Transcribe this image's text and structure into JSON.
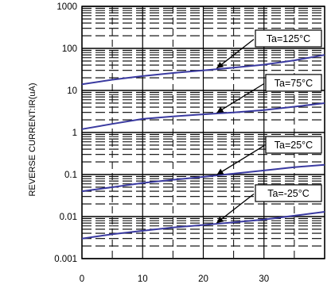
{
  "chart_data": {
    "type": "line",
    "title": "",
    "xlabel": "",
    "ylabel": "REVERSE CURRENT:IR(uA)",
    "y_scale": "log",
    "ylim": [
      0.001,
      1000
    ],
    "xlim": [
      0,
      40
    ],
    "grid": true,
    "x_tick_labels": [
      "0",
      "10",
      "20",
      "30"
    ],
    "y_tick_labels": [
      "1000",
      "100",
      "10",
      "1",
      "0.1",
      "0.01",
      "0.001"
    ],
    "series": [
      {
        "name": "Ta=125°C",
        "x": [
          0,
          5,
          10,
          15,
          20,
          25,
          30,
          35,
          40
        ],
        "values": [
          14,
          18,
          22,
          26,
          30,
          35,
          41,
          52,
          70
        ]
      },
      {
        "name": "Ta=75°C",
        "x": [
          0,
          5,
          10,
          15,
          20,
          25,
          30,
          35,
          40
        ],
        "values": [
          1.2,
          1.6,
          2.1,
          2.4,
          2.7,
          3.0,
          3.4,
          4.1,
          5.0
        ]
      },
      {
        "name": "Ta=25°C",
        "x": [
          0,
          5,
          10,
          15,
          20,
          25,
          30,
          35,
          40
        ],
        "values": [
          0.04,
          0.05,
          0.063,
          0.075,
          0.088,
          0.105,
          0.125,
          0.15,
          0.17
        ]
      },
      {
        "name": "Ta=-25°C",
        "x": [
          0,
          5,
          10,
          15,
          20,
          25,
          30,
          35,
          40
        ],
        "values": [
          0.003,
          0.0038,
          0.0046,
          0.0055,
          0.0063,
          0.0073,
          0.0085,
          0.0105,
          0.013
        ]
      }
    ],
    "annotations": [
      {
        "text": "Ta=125°C",
        "series": "Ta=125°C",
        "arrow_to_x": 22
      },
      {
        "text": "Ta=75°C",
        "series": "Ta=75°C",
        "arrow_to_x": 22
      },
      {
        "text": "Ta=25°C",
        "series": "Ta=25°C",
        "arrow_to_x": 22
      },
      {
        "text": "Ta=-25°C",
        "series": "Ta=-25°C",
        "arrow_to_x": 22
      }
    ],
    "colors": {
      "line": "#3a3aa0",
      "grid": "#000000"
    }
  }
}
